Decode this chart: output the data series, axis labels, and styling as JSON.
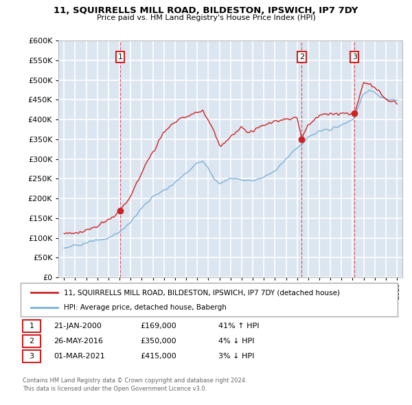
{
  "title": "11, SQUIRRELLS MILL ROAD, BILDESTON, IPSWICH, IP7 7DY",
  "subtitle": "Price paid vs. HM Land Registry's House Price Index (HPI)",
  "plot_bg_color": "#dce6f1",
  "grid_color": "#ffffff",
  "red_color": "#cc2222",
  "blue_color": "#7ab0d8",
  "sale_dates": [
    2000.06,
    2016.42,
    2021.17
  ],
  "sale_prices": [
    169000,
    350000,
    415000
  ],
  "sale_labels": [
    "1",
    "2",
    "3"
  ],
  "legend_entries": [
    "11, SQUIRRELLS MILL ROAD, BILDESTON, IPSWICH, IP7 7DY (detached house)",
    "HPI: Average price, detached house, Babergh"
  ],
  "table_data": [
    [
      "1",
      "21-JAN-2000",
      "£169,000",
      "41% ↑ HPI"
    ],
    [
      "2",
      "26-MAY-2016",
      "£350,000",
      "4% ↓ HPI"
    ],
    [
      "3",
      "01-MAR-2021",
      "£415,000",
      "3% ↓ HPI"
    ]
  ],
  "footer": "Contains HM Land Registry data © Crown copyright and database right 2024.\nThis data is licensed under the Open Government Licence v3.0.",
  "ylim": [
    0,
    600000
  ],
  "yticks": [
    0,
    50000,
    100000,
    150000,
    200000,
    250000,
    300000,
    350000,
    400000,
    450000,
    500000,
    550000,
    600000
  ],
  "xmin": 1994.5,
  "xmax": 2025.5
}
